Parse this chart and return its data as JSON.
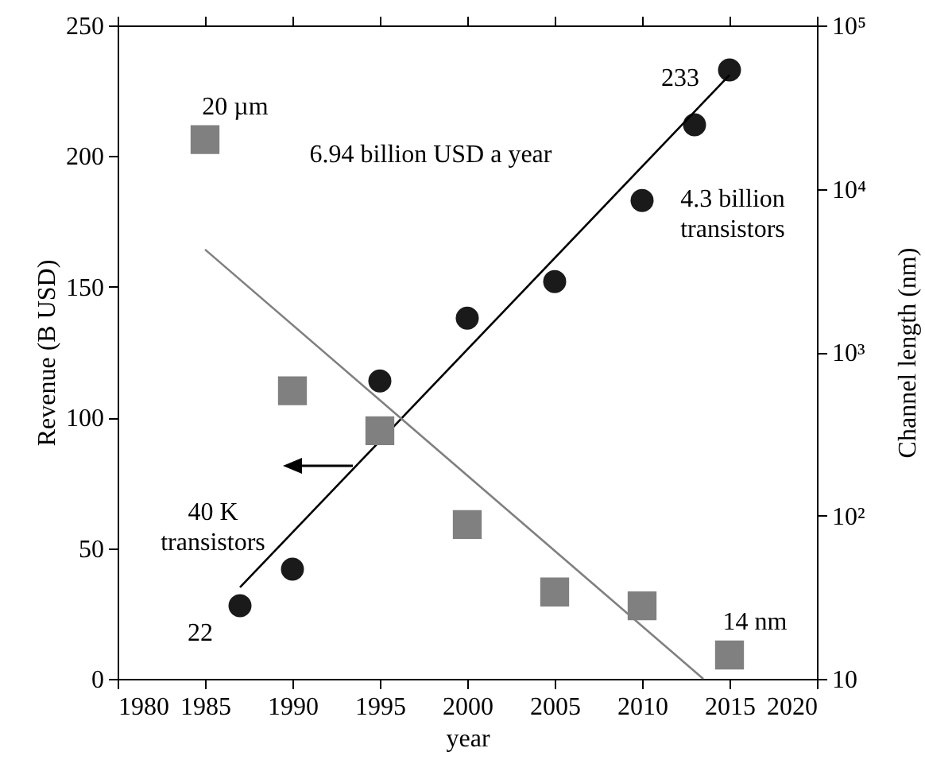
{
  "chart_data": {
    "type": "scatter",
    "xlabel": "year",
    "ylabel": "Revenue (B USD)",
    "y2label": "Channel length (nm)",
    "xlim": [
      1980,
      2020
    ],
    "xticks": [
      1980,
      1985,
      1990,
      1995,
      2000,
      2005,
      2010,
      2015,
      2020
    ],
    "ylim": [
      0,
      250
    ],
    "yticks": [
      0,
      50,
      100,
      150,
      200,
      250
    ],
    "y2lim": [
      10,
      100000
    ],
    "y2ticks": [
      10,
      {
        "value": 100,
        "label": "10²"
      },
      {
        "value": 1000,
        "label": "10³"
      },
      {
        "value": 10000,
        "label": "10⁴"
      },
      {
        "value": 100000,
        "label": "10⁵"
      }
    ],
    "log": "y2",
    "series": [
      {
        "marker": "circle",
        "color": "#1a1a1a",
        "x": [
          1987,
          1990,
          1995,
          2000,
          2005,
          2010,
          2013,
          2015
        ],
        "values": [
          28,
          42,
          114,
          138,
          152,
          183,
          212,
          233
        ]
      },
      {
        "type": "line",
        "color": "#000000",
        "x": [
          1987,
          2015
        ],
        "values": [
          35,
          231
        ]
      },
      {
        "marker": "square",
        "axis": "y2",
        "color": "#808080",
        "x": [
          1985,
          1990,
          1995,
          2000,
          2005,
          2010,
          2015
        ],
        "values": [
          20000,
          580,
          330,
          88,
          34,
          28,
          14
        ]
      },
      {
        "type": "line",
        "axis": "y2",
        "color": "#808080",
        "x": [
          1985,
          2013.5
        ],
        "values": [
          4250,
          10
        ]
      }
    ],
    "annotations": [
      "20 µm",
      "6.94 billion USD a year",
      "4.3 billion\ntransistors",
      "40 K\ntransistors",
      "22",
      "233",
      "14 nm"
    ]
  }
}
